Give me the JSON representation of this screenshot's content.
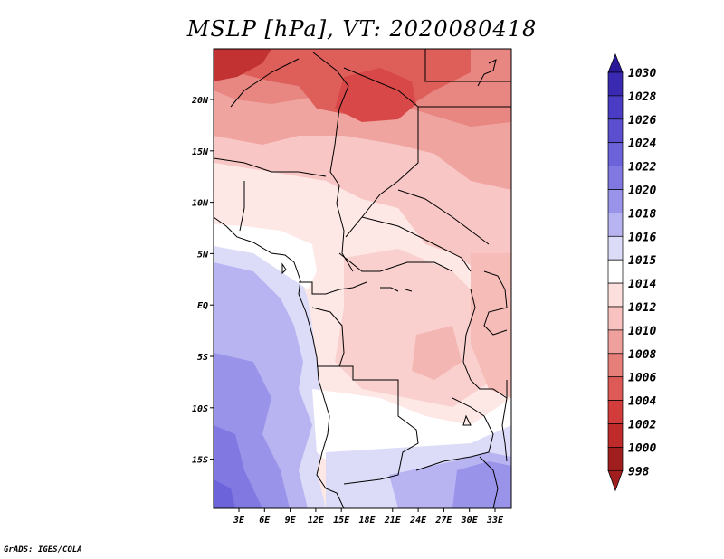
{
  "title": "MSLP [hPa], VT: 2020080418",
  "credit": "GrADS: IGES/COLA",
  "map": {
    "lon_labels": [
      "3E",
      "6E",
      "9E",
      "12E",
      "15E",
      "18E",
      "21E",
      "24E",
      "27E",
      "30E",
      "33E"
    ],
    "lat_labels": [
      "20N",
      "15N",
      "10N",
      "5N",
      "EQ",
      "5S",
      "10S",
      "15S"
    ]
  },
  "colorbar": {
    "labels": [
      "1030",
      "1028",
      "1026",
      "1024",
      "1022",
      "1020",
      "1018",
      "1016",
      "1015",
      "1014",
      "1012",
      "1010",
      "1008",
      "1006",
      "1004",
      "1002",
      "1000",
      "998"
    ],
    "colors": [
      "#2a1a9a",
      "#3a2ab2",
      "#4a3cc4",
      "#5b4fd0",
      "#6c62da",
      "#8178e2",
      "#9a93ea",
      "#b8b4f2",
      "#dcdcf8",
      "#ffffff",
      "#fde0de",
      "#f8c2c0",
      "#f0a09c",
      "#e67e7a",
      "#dd5a56",
      "#d23c3a",
      "#bf2a2a",
      "#a01e1e"
    ]
  }
}
